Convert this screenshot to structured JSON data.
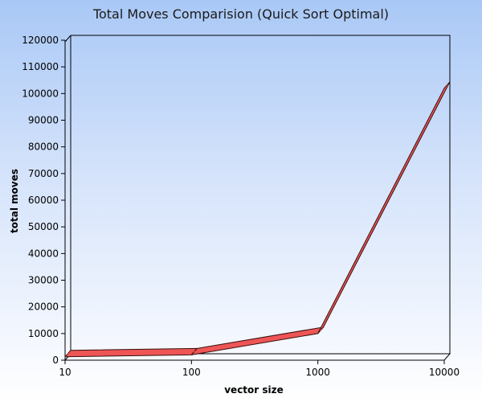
{
  "chart_data": {
    "type": "line",
    "title": "Total Moves Comparision (Quick Sort Optimal)",
    "xlabel": "vector size",
    "ylabel": "total moves",
    "x_scale": "log",
    "x": [
      10,
      100,
      1000,
      10000
    ],
    "x_tick_labels": [
      "10",
      "100",
      "1000",
      "10000"
    ],
    "ylim": [
      0,
      120000
    ],
    "y_ticks": [
      0,
      10000,
      20000,
      30000,
      40000,
      50000,
      60000,
      70000,
      80000,
      90000,
      100000,
      110000,
      120000
    ],
    "y_tick_labels": [
      "0",
      "10000",
      "20000",
      "30000",
      "40000",
      "50000",
      "60000",
      "70000",
      "80000",
      "90000",
      "100000",
      "110000",
      "120000"
    ],
    "series": [
      {
        "values": [
          1300,
          2000,
          10000,
          102000
        ],
        "color": "#ee5555"
      }
    ],
    "grid": false,
    "legend": "none",
    "style": "3d"
  }
}
